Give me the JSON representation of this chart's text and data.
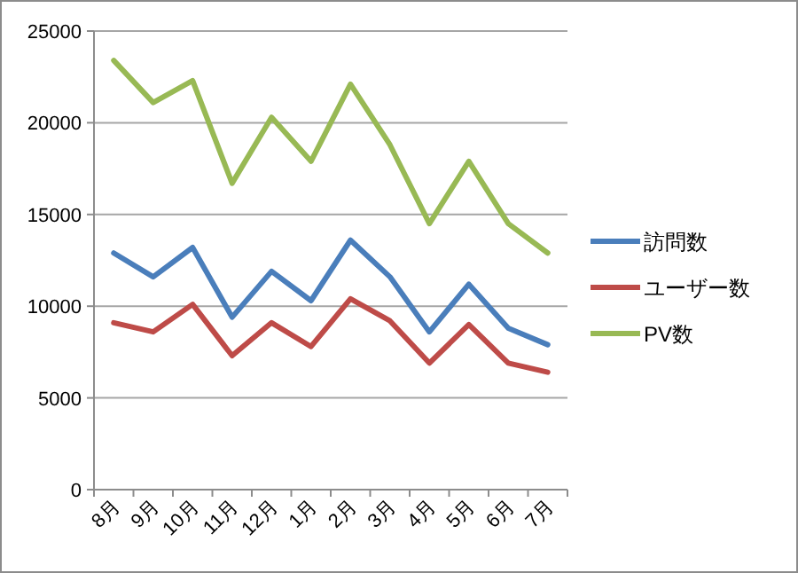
{
  "chart_data": {
    "type": "line",
    "categories": [
      "8月",
      "9月",
      "10月",
      "11月",
      "12月",
      "1月",
      "2月",
      "3月",
      "4月",
      "5月",
      "6月",
      "7月"
    ],
    "series": [
      {
        "name": "訪問数",
        "color": "#4a7ebb",
        "values": [
          12900,
          11600,
          13200,
          9400,
          11900,
          10300,
          13600,
          11600,
          8600,
          11200,
          8800,
          7900
        ]
      },
      {
        "name": "ユーザー数",
        "color": "#be4b48",
        "values": [
          9100,
          8600,
          10100,
          7300,
          9100,
          7800,
          10400,
          9200,
          6900,
          9000,
          6900,
          6400
        ]
      },
      {
        "name": "PV数",
        "color": "#98b954",
        "values": [
          23400,
          21100,
          22300,
          16700,
          20300,
          17900,
          22100,
          18800,
          14500,
          17900,
          14500,
          12900
        ]
      }
    ],
    "ylim": [
      0,
      25000
    ],
    "yticks": [
      0,
      5000,
      10000,
      15000,
      20000,
      25000
    ],
    "grid": "y",
    "legend": "right",
    "marker": "none",
    "line_style": "solid"
  }
}
